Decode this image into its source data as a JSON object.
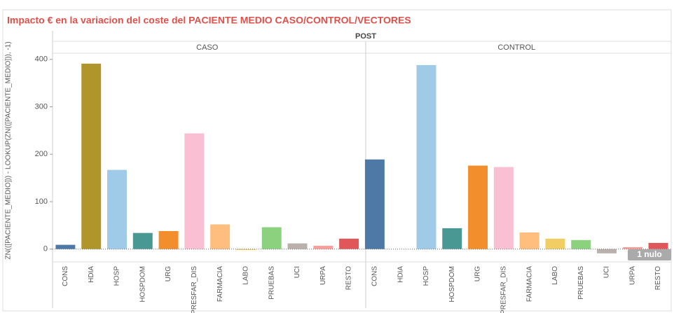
{
  "chart_data": {
    "type": "bar",
    "title": "Impacto € en la variacion del coste del PACIENTE MEDIO CASO/CONTROL/VECTORES",
    "header": "POST",
    "y_label": "ZN(([PACIENTE_MEDIO])) - LOOKUP(ZN(([PACIENTE_MEDIO])), -1)",
    "categories": [
      "CONS",
      "HDIA",
      "HOSP",
      "HOSPDOM",
      "URG",
      "PRESFAR_DIS",
      "FARMACIA",
      "LABO",
      "PRUEBAS",
      "UCI",
      "URPA",
      "RESTO"
    ],
    "colors": [
      "#4e79a7",
      "#b0952a",
      "#a0cbe8",
      "#499894",
      "#f28e2b",
      "#fabfd2",
      "#ffbe7d",
      "#f1ce63",
      "#8cd17d",
      "#bab0ac",
      "#ff9d9a",
      "#e15759"
    ],
    "panels": [
      {
        "name": "CASO",
        "values": [
          9,
          391,
          167,
          34,
          38,
          244,
          52,
          -2,
          46,
          12,
          7,
          22
        ]
      },
      {
        "name": "CONTROL",
        "values": [
          189,
          null,
          388,
          44,
          176,
          173,
          35,
          22,
          19,
          -9,
          4,
          13
        ]
      }
    ],
    "null_indicator": "1 nulo",
    "ylim": [
      -27,
      413
    ],
    "yticks": [
      0,
      100,
      200,
      300,
      400
    ]
  }
}
